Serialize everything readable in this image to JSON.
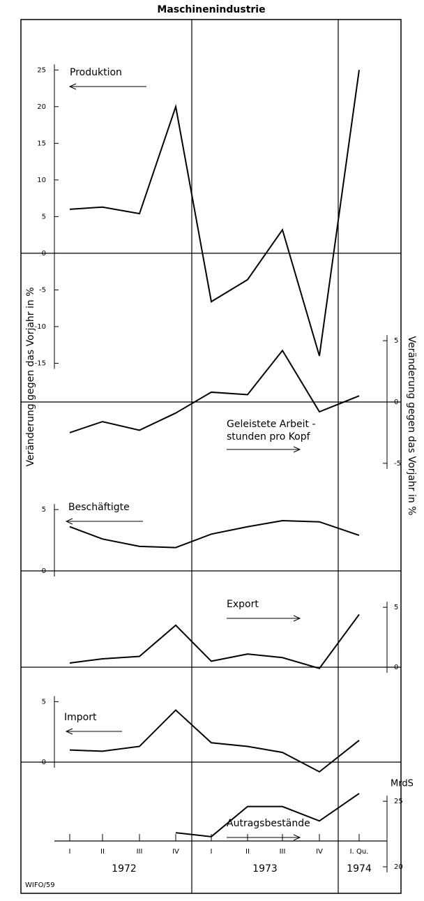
{
  "title": "Maschinenindustrie",
  "ylabel_left": "Veränderung gegen das Vorjahr in %",
  "ylabel_right": "Veränderung gegen das Vorjahr in %",
  "unit_label": "MrdS",
  "source": "WIFO/59",
  "categories": [
    "I",
    "II",
    "III",
    "IV",
    "I",
    "II",
    "III",
    "IV",
    "I. Qu."
  ],
  "years": [
    "1972",
    "1973",
    "1974"
  ],
  "chart_data": [
    {
      "type": "line",
      "label": [
        "Produktion"
      ],
      "axis": "left",
      "color": "#000000",
      "values": [
        6,
        6.3,
        5.4,
        20,
        -6.6,
        -3.6,
        3.2,
        -14,
        25
      ],
      "ylim": [
        -20,
        27.5
      ],
      "yticks": [
        -15,
        -10,
        -5,
        0,
        5,
        10,
        15,
        20,
        25
      ]
    },
    {
      "type": "line",
      "label": [
        "Geleistete Arbeit -",
        "stunden pro Kopf"
      ],
      "axis": "right",
      "color": "#000000",
      "values": [
        -2.5,
        -1.6,
        -2.3,
        -0.9,
        0.8,
        0.6,
        4.2,
        -0.8,
        0.5
      ],
      "ylim": [
        -7,
        7
      ],
      "yticks": [
        -5,
        0,
        5
      ]
    },
    {
      "type": "line",
      "label": [
        "Beschäftigte"
      ],
      "axis": "left",
      "color": "#000000",
      "values": [
        3.6,
        2.6,
        2.0,
        1.9,
        3.0,
        3.6,
        4.1,
        4.0,
        2.9
      ],
      "ylim": [
        0,
        7
      ],
      "yticks": [
        0,
        5
      ]
    },
    {
      "type": "line",
      "label": [
        "Export"
      ],
      "axis": "right",
      "color": "#000000",
      "values": [
        0.35,
        0.7,
        0.9,
        3.5,
        0.5,
        1.1,
        0.8,
        -0.1,
        4.4
      ],
      "ylim": [
        0,
        6
      ],
      "yticks": [
        0,
        5
      ]
    },
    {
      "type": "line",
      "label": [
        "Import"
      ],
      "axis": "left",
      "color": "#000000",
      "values": [
        1.0,
        0.9,
        1.3,
        4.3,
        1.6,
        1.3,
        0.8,
        -0.8,
        1.8
      ],
      "ylim": [
        -1.5,
        6
      ],
      "yticks": [
        0,
        5
      ]
    },
    {
      "type": "line",
      "label": [
        "Autragsbestände"
      ],
      "axis": "right",
      "color": "#000000",
      "values": [
        null,
        null,
        null,
        22.6,
        22.3,
        24.6,
        24.6,
        23.5,
        25.6
      ],
      "ylim": [
        20,
        26.5
      ],
      "yticks": [
        20,
        25
      ]
    }
  ]
}
